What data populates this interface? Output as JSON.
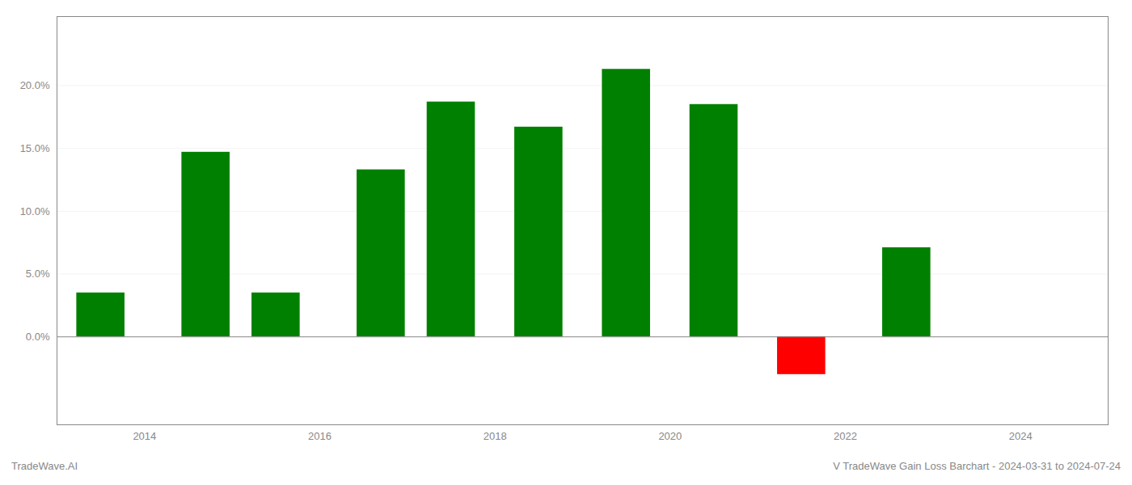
{
  "chart_data": {
    "type": "bar",
    "x": [
      2013.5,
      2014.7,
      2015.5,
      2016.7,
      2017.5,
      2018.5,
      2019.5,
      2020.5,
      2021.5,
      2022.7
    ],
    "values": [
      0.035,
      0.147,
      0.035,
      0.133,
      0.187,
      0.167,
      0.213,
      0.185,
      -0.03,
      0.071
    ],
    "colors": [
      "#008000",
      "#008000",
      "#008000",
      "#008000",
      "#008000",
      "#008000",
      "#008000",
      "#008000",
      "#ff0000",
      "#008000"
    ],
    "xlim": [
      2013.0,
      2025.0
    ],
    "xticks": [
      2014,
      2016,
      2018,
      2020,
      2022,
      2024
    ],
    "ylim": [
      -0.07,
      0.255
    ],
    "yticks": [
      {
        "value": 0.0,
        "label": "0.0%"
      },
      {
        "value": 0.05,
        "label": "5.0%"
      },
      {
        "value": 0.1,
        "label": "10.0%"
      },
      {
        "value": 0.15,
        "label": "15.0%"
      },
      {
        "value": 0.2,
        "label": "20.0%"
      }
    ],
    "grid": true,
    "annotations": [
      "TradeWave.AI",
      "V TradeWave Gain Loss Barchart - 2024-03-31 to 2024-07-24"
    ]
  }
}
